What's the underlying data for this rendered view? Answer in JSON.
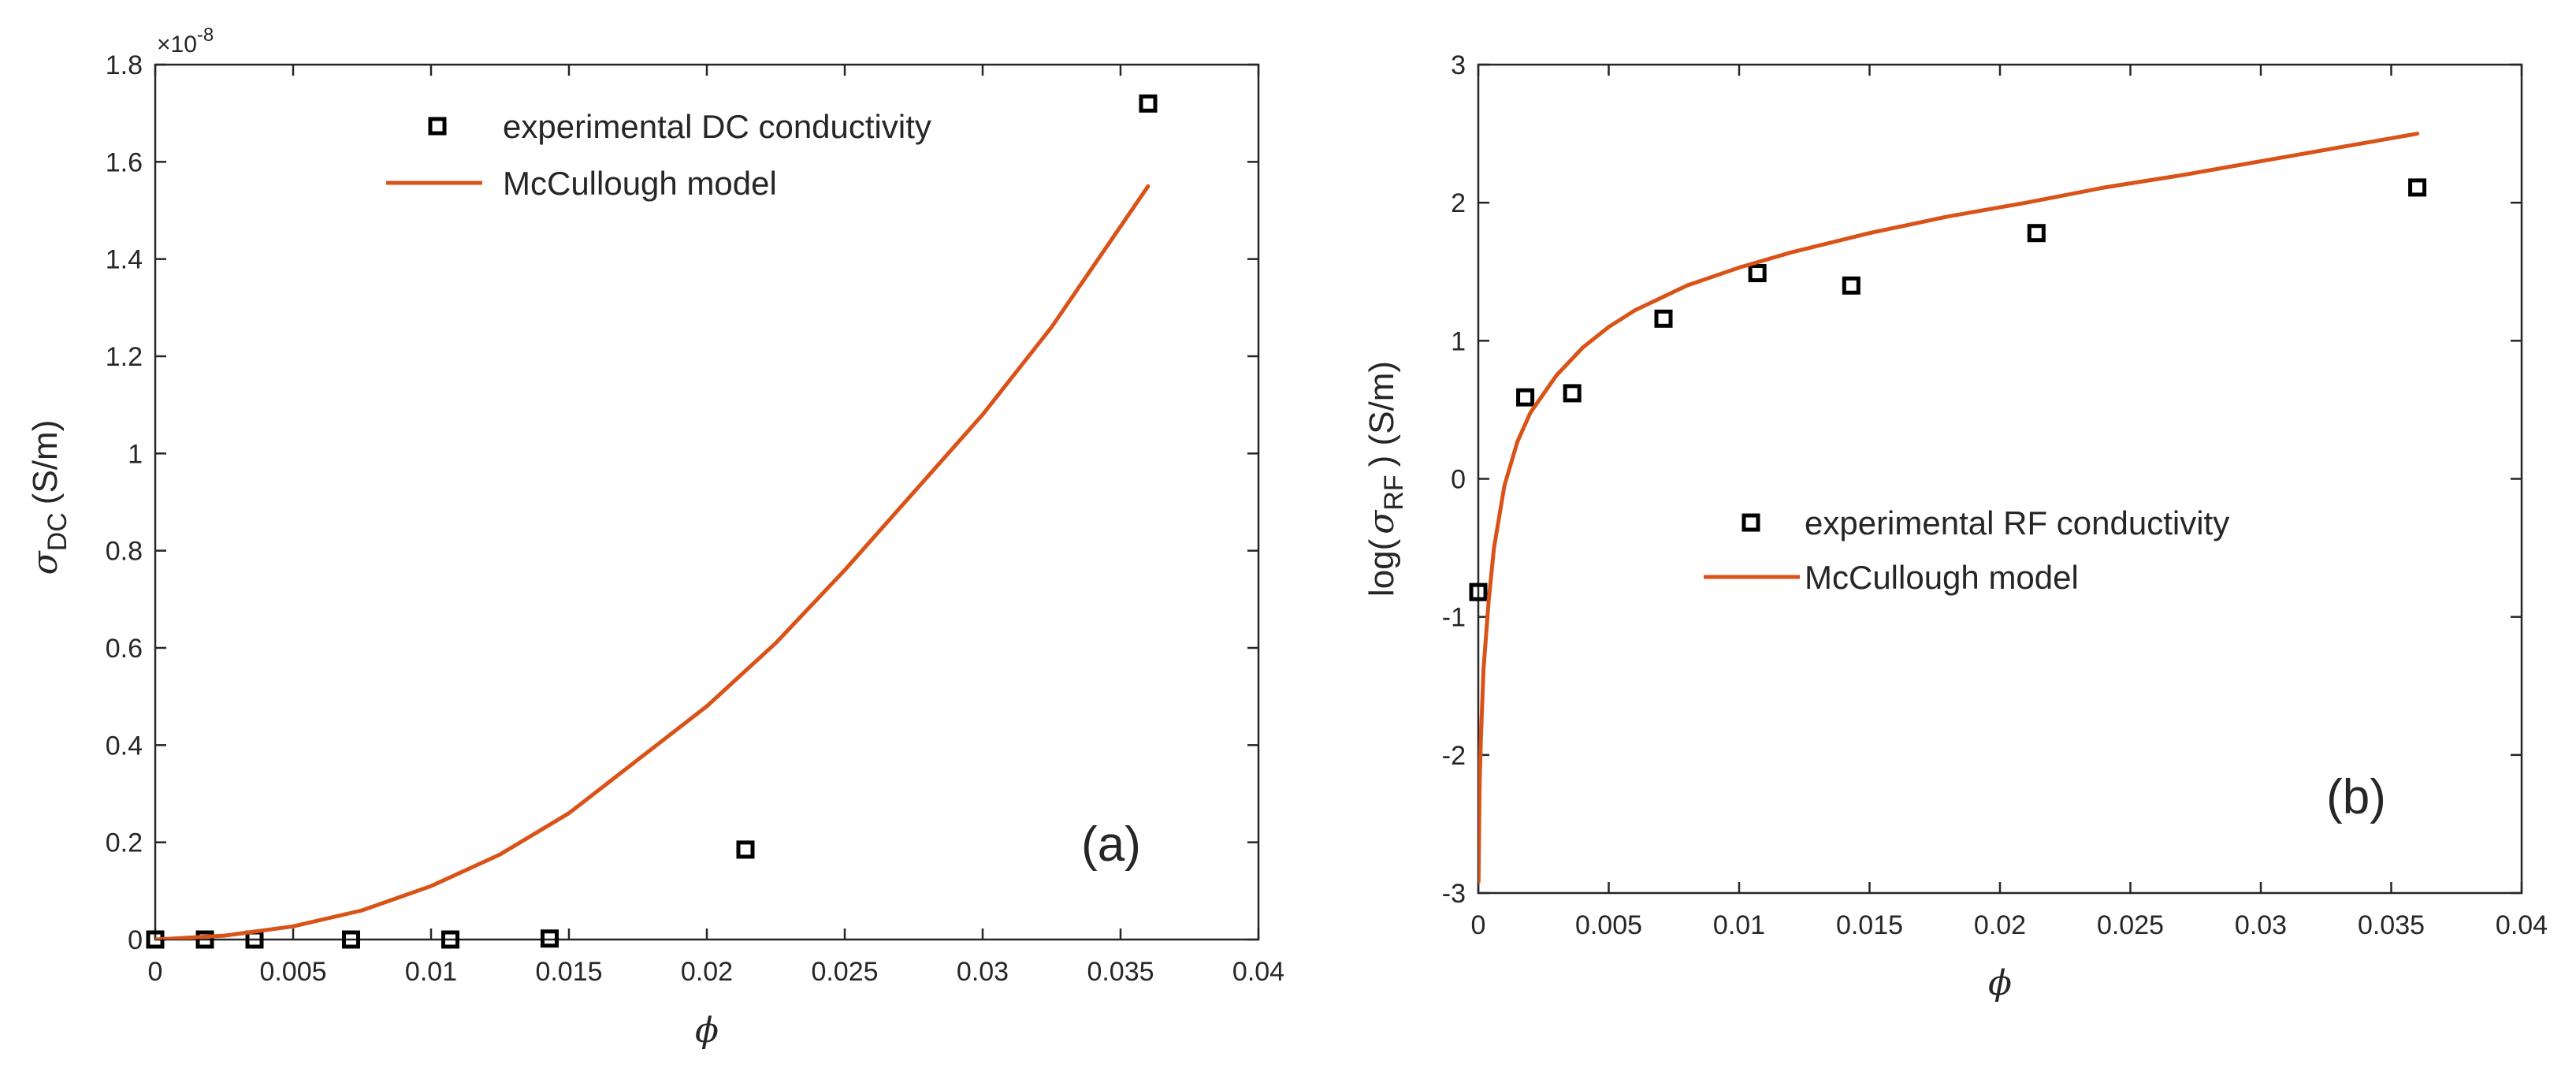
{
  "figure": {
    "colors": {
      "model": "#d95319",
      "marker": "#000000",
      "axis": "#262626"
    }
  },
  "chart_data": [
    {
      "type": "scatter",
      "panel_label": "(a)",
      "title": "",
      "xlabel": "ϕ",
      "ylabel": {
        "symbol": "σ",
        "sub": "DC",
        "unit": "(S/m)"
      },
      "xlim": [
        0,
        0.04
      ],
      "ylim": [
        0,
        1.8e-08
      ],
      "y_exponent_label": "×10",
      "y_exponent_power": "-8",
      "x_ticks": [
        0,
        0.005,
        0.01,
        0.015,
        0.02,
        0.025,
        0.03,
        0.035,
        0.04
      ],
      "x_tick_labels": [
        "0",
        "0.005",
        "0.01",
        "0.015",
        "0.02",
        "0.025",
        "0.03",
        "0.035",
        "0.04"
      ],
      "y_ticks": [
        0,
        2e-09,
        4e-09,
        6e-09,
        8e-09,
        1e-08,
        1.2e-08,
        1.4e-08,
        1.6e-08,
        1.8e-08
      ],
      "y_tick_labels": [
        "0",
        "0.2",
        "0.4",
        "0.6",
        "0.8",
        "1",
        "1.2",
        "1.4",
        "1.6",
        "1.8"
      ],
      "legend_position": "top-center",
      "series": [
        {
          "name": "experimental DC conductivity",
          "kind": "markers",
          "marker": "square",
          "x": [
            0,
            0.0018,
            0.0036,
            0.0071,
            0.0107,
            0.0143,
            0.0214,
            0.036
          ],
          "y": [
            0,
            0,
            0,
            0,
            0,
            2e-11,
            1.85e-09,
            1.72e-08
          ]
        },
        {
          "name": "McCullough model",
          "kind": "line",
          "x": [
            0,
            0.0025,
            0.005,
            0.0075,
            0.01,
            0.0125,
            0.015,
            0.0175,
            0.02,
            0.0225,
            0.025,
            0.0275,
            0.03,
            0.0325,
            0.036
          ],
          "y": [
            0,
            8e-11,
            2.7e-10,
            6e-10,
            1.1e-09,
            1.75e-09,
            2.6e-09,
            3.7e-09,
            4.8e-09,
            6.1e-09,
            7.6e-09,
            9.2e-09,
            1.08e-08,
            1.26e-08,
            1.55e-08
          ]
        }
      ]
    },
    {
      "type": "scatter",
      "panel_label": "(b)",
      "title": "",
      "xlabel": "ϕ",
      "ylabel": {
        "prefix": "log(",
        "symbol": "σ",
        "sub": "RF",
        "suffix": ") (S/m)"
      },
      "xlim": [
        0,
        0.04
      ],
      "ylim": [
        -3,
        3
      ],
      "x_ticks": [
        0,
        0.005,
        0.01,
        0.015,
        0.02,
        0.025,
        0.03,
        0.035,
        0.04
      ],
      "x_tick_labels": [
        "0",
        "0.005",
        "0.01",
        "0.015",
        "0.02",
        "0.025",
        "0.03",
        "0.035",
        "0.04"
      ],
      "y_ticks": [
        -3,
        -2,
        -1,
        0,
        1,
        2,
        3
      ],
      "y_tick_labels": [
        "-3",
        "-2",
        "-1",
        "0",
        "1",
        "2",
        "3"
      ],
      "legend_position": "center",
      "series": [
        {
          "name": "experimental RF conductivity",
          "kind": "markers",
          "marker": "square",
          "x": [
            0,
            0.0018,
            0.0036,
            0.0071,
            0.0107,
            0.0143,
            0.0214,
            0.036
          ],
          "y": [
            -0.82,
            0.59,
            0.62,
            1.16,
            1.49,
            1.4,
            1.78,
            2.11
          ]
        },
        {
          "name": "McCullough model",
          "kind": "line",
          "x": [
            1e-05,
            5e-05,
            0.0001,
            0.0002,
            0.0004,
            0.0006,
            0.001,
            0.0015,
            0.002,
            0.003,
            0.004,
            0.005,
            0.006,
            0.008,
            0.01,
            0.012,
            0.015,
            0.018,
            0.021,
            0.024,
            0.027,
            0.03,
            0.033,
            0.036
          ],
          "y": [
            -2.92,
            -2.2,
            -1.88,
            -1.38,
            -0.88,
            -0.5,
            -0.05,
            0.27,
            0.48,
            0.75,
            0.95,
            1.1,
            1.22,
            1.4,
            1.53,
            1.64,
            1.78,
            1.9,
            2.0,
            2.11,
            2.2,
            2.3,
            2.4,
            2.5
          ]
        }
      ]
    }
  ]
}
